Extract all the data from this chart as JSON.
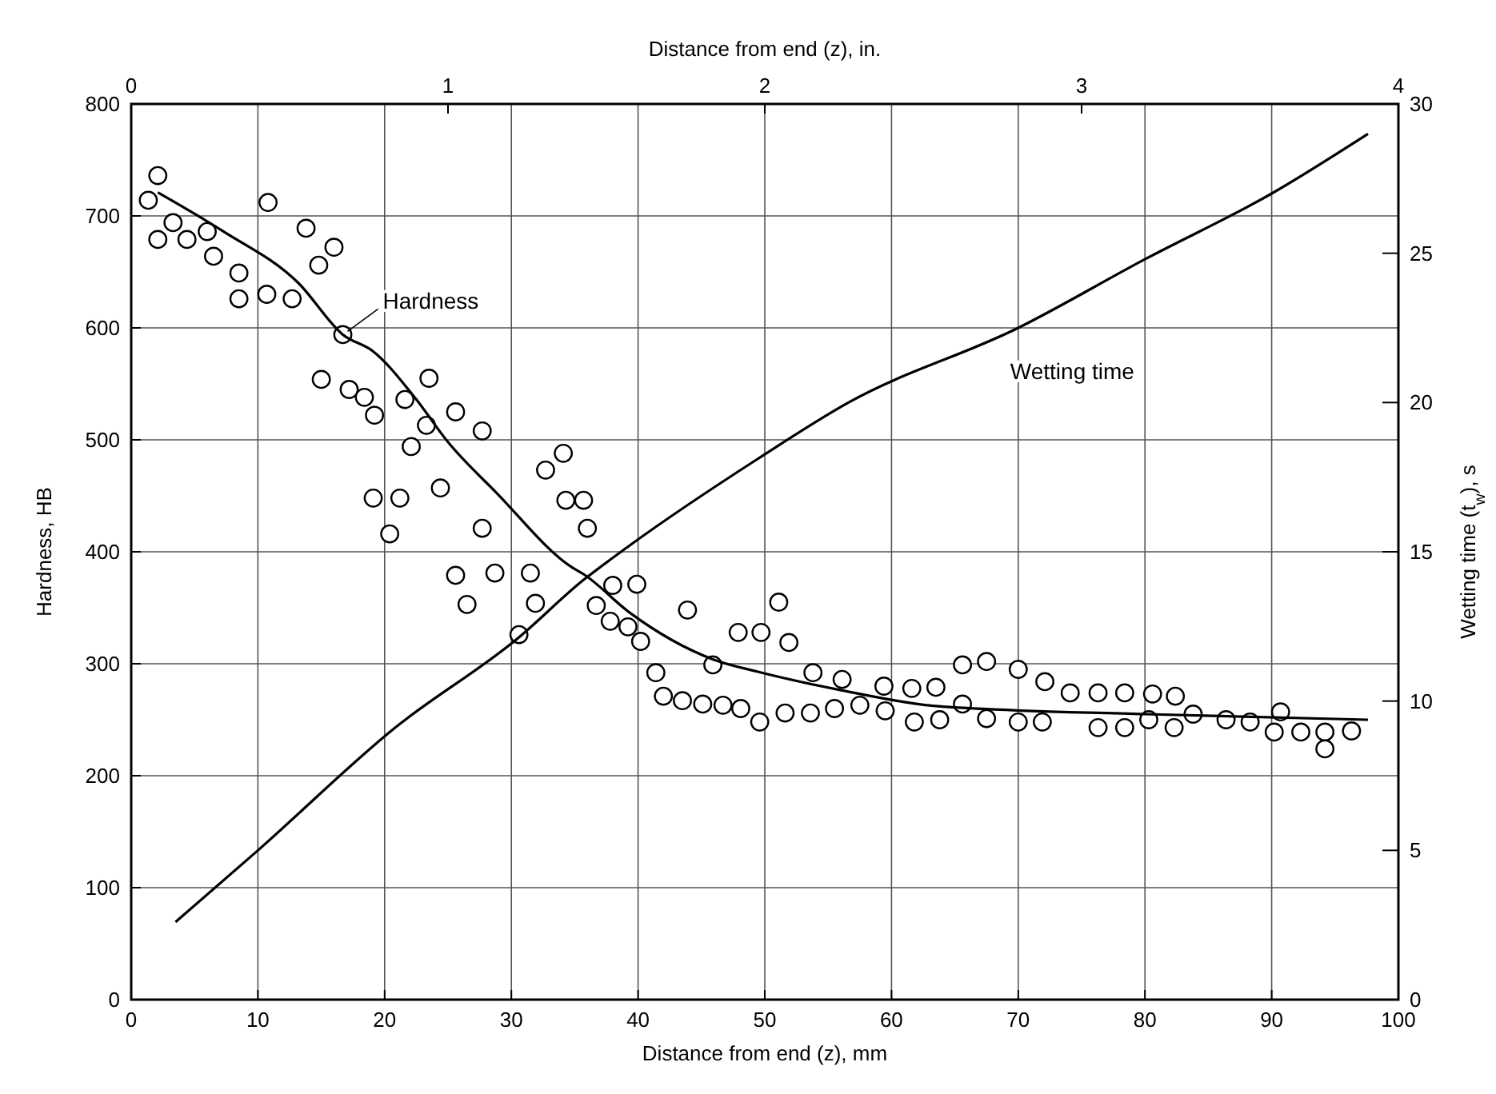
{
  "chart_data": {
    "type": "scatter",
    "xlabel": "Distance from end (z), mm",
    "x2label": "Distance from end (z), in.",
    "ylabel": "Hardness, HB",
    "y2label": "Wetting time (t$_{w}$), s",
    "xlim": [
      0,
      100
    ],
    "xticks": [
      0,
      10,
      20,
      30,
      40,
      50,
      60,
      70,
      80,
      90,
      100
    ],
    "x2lim": [
      0,
      4
    ],
    "x2ticks": [
      0,
      1,
      2,
      3,
      4
    ],
    "ylim": [
      0,
      800
    ],
    "yticks": [
      0,
      100,
      200,
      300,
      400,
      500,
      600,
      700,
      800
    ],
    "y2lim": [
      0,
      30
    ],
    "y2ticks": [
      0,
      5,
      10,
      15,
      20,
      25,
      30
    ],
    "grid": true,
    "legend": false,
    "series": [
      {
        "marker": "circle",
        "color": "#000000",
        "x": [
          2.1,
          1.35,
          2.1,
          3.3,
          4.4,
          6.0,
          6.5,
          8.5,
          8.5,
          10.8,
          10.7,
          12.7,
          13.8,
          14.8,
          16.0,
          16.7,
          15.0,
          17.2,
          18.4,
          19.2,
          21.6,
          23.5,
          23.3,
          22.1,
          25.6,
          27.7,
          24.4,
          19.1,
          21.2,
          20.4,
          27.7,
          25.6,
          26.5,
          28.7,
          31.5,
          31.9,
          30.6,
          32.7,
          34.1,
          34.3,
          35.7,
          36.0,
          38.0,
          39.9,
          36.7,
          37.8,
          39.2,
          40.2,
          43.9,
          41.4,
          45.9,
          47.9,
          49.7,
          51.1,
          51.9,
          42.0,
          43.5,
          45.1,
          46.7,
          48.1,
          49.6,
          51.6,
          53.6,
          55.5,
          57.5,
          59.5,
          61.8,
          63.8,
          67.5,
          53.8,
          56.1,
          59.4,
          61.6,
          63.5,
          65.6,
          67.5,
          65.6,
          70.0,
          70.0,
          71.9,
          72.1,
          74.1,
          76.3,
          78.4,
          80.6,
          82.4,
          76.3,
          78.4,
          80.3,
          82.3,
          83.8,
          86.4,
          88.3,
          90.7,
          90.2,
          92.3,
          94.2,
          94.2,
          96.3
        ],
        "values": [
          736,
          714,
          679,
          694,
          679,
          686,
          664,
          649,
          626,
          712,
          630,
          626,
          689,
          656,
          672,
          594,
          554,
          545,
          538,
          522,
          536,
          555,
          513,
          494,
          525,
          508,
          457,
          448,
          448,
          416,
          421,
          379,
          353,
          381,
          381,
          354,
          326,
          473,
          488,
          446,
          446,
          421,
          370,
          371,
          352,
          338,
          333,
          320,
          348,
          292,
          299,
          328,
          328,
          355,
          319,
          271,
          267,
          264,
          263,
          260,
          248,
          256,
          256,
          260,
          263,
          258,
          248,
          250,
          251,
          292,
          286,
          280,
          278,
          279,
          299,
          302,
          264,
          295,
          248,
          248,
          284,
          274,
          274,
          274,
          273,
          271,
          243,
          243,
          250,
          243,
          255,
          250,
          248,
          257,
          239,
          239,
          239,
          224,
          240
        ]
      },
      {
        "type": "line",
        "name": "Hardness",
        "color": "#000000",
        "marker": "none",
        "line_style": "solid",
        "x": [
          2.1,
          7.3,
          13.2,
          16.7,
          19.1,
          22.5,
          25,
          28.8,
          34.8,
          35.7,
          39.3,
          45.9,
          49.4,
          56.2,
          63.7,
          80,
          97.6
        ],
        "values": [
          721,
          686,
          640,
          594,
          579,
          536,
          498,
          453,
          386,
          380,
          346,
          304,
          293,
          276,
          262,
          255,
          250
        ]
      },
      {
        "type": "line",
        "name": "Wetting time",
        "axis": "y2",
        "color": "#000000",
        "marker": "none",
        "line_style": "solid",
        "x": [
          3.5,
          10,
          20.8,
          30.5,
          35.7,
          39.3,
          49.4,
          56.6,
          70,
          80,
          90,
          97.6
        ],
        "values": [
          2.6,
          5.0,
          9.1,
          12.1,
          14.06,
          15.2,
          18.1,
          20.0,
          22.5,
          24.8,
          27.0,
          29.0
        ]
      }
    ]
  }
}
